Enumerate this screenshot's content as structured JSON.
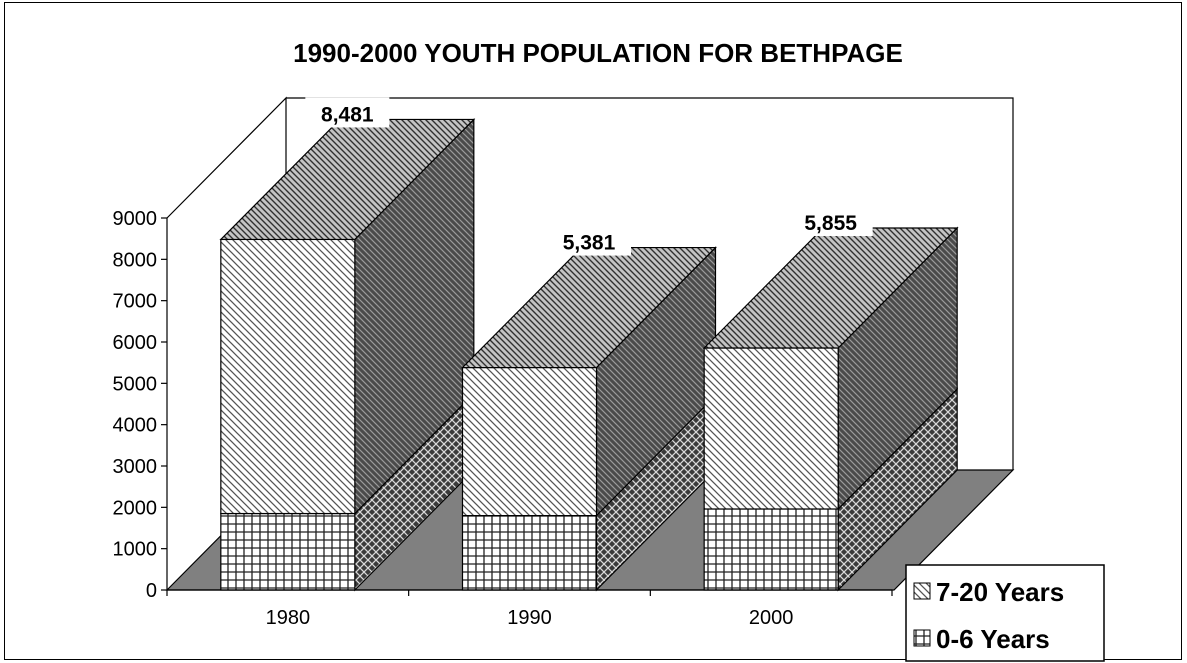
{
  "chart_data": {
    "type": "bar",
    "stacked": true,
    "three_d": true,
    "title": "1990-2000 YOUTH POPULATION FOR BETHPAGE",
    "categories": [
      "1980",
      "1990",
      "2000"
    ],
    "series": [
      {
        "name": "0-6 Years",
        "values": [
          1850,
          1800,
          1960
        ]
      },
      {
        "name": "7-20 Years",
        "values": [
          6631,
          3581,
          3895
        ]
      }
    ],
    "totals_labels": [
      "8,481",
      "5,381",
      "5,855"
    ],
    "ylim": [
      0,
      9000
    ],
    "yticks": [
      "0",
      "1000",
      "2000",
      "3000",
      "4000",
      "5000",
      "6000",
      "7000",
      "8000",
      "9000"
    ],
    "legend_position": "bottom-right",
    "grid": false
  }
}
